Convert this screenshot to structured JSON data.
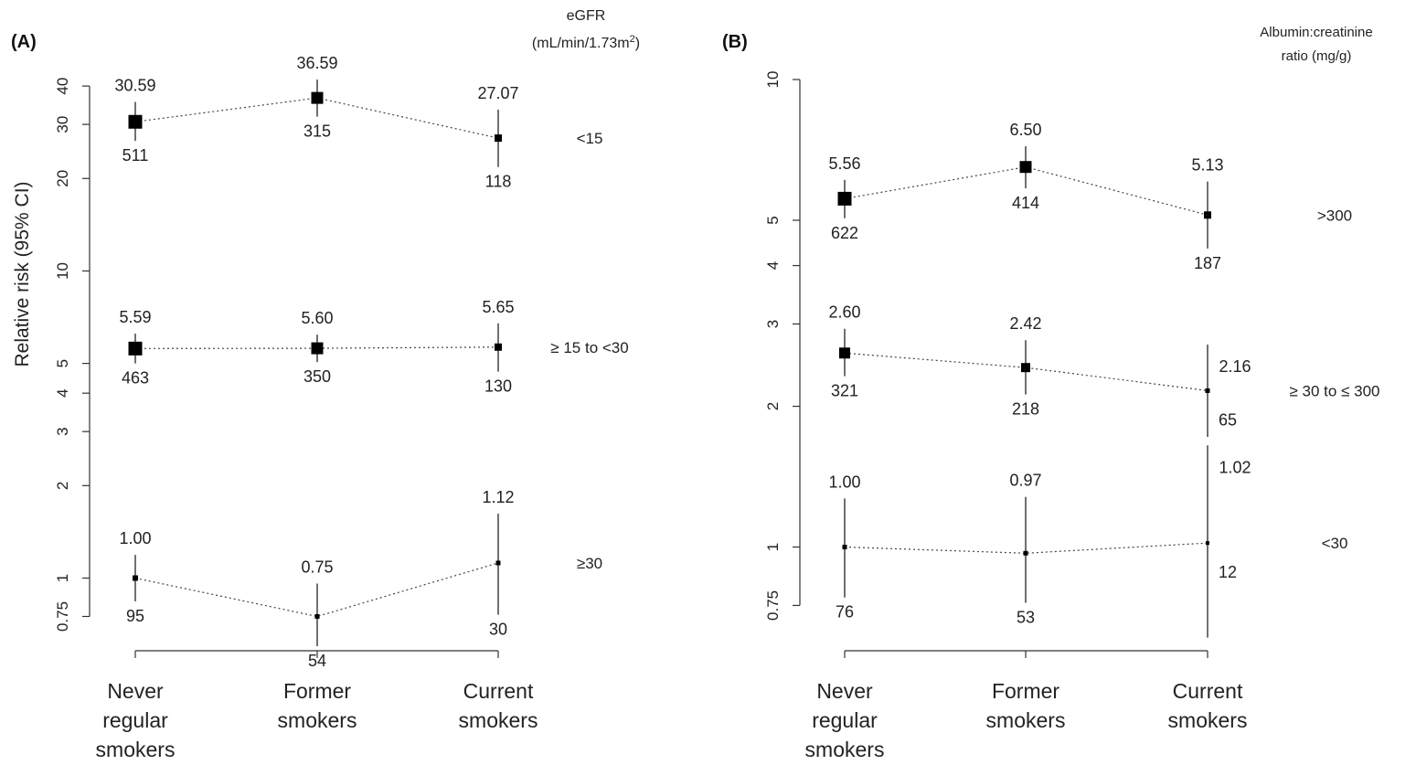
{
  "chart_data": [
    {
      "type": "scatter",
      "panel_label": "(A)",
      "ylabel": "Relative risk (95% CI)",
      "yscale": "log",
      "ylim": [
        0.58,
        42
      ],
      "yticks": [
        0.75,
        1,
        2,
        3,
        4,
        5,
        10,
        20,
        30,
        40
      ],
      "ytick_labels": [
        "0.75",
        "1",
        "2",
        "3",
        "4",
        "5",
        "10",
        "20",
        "30",
        "40"
      ],
      "categories": [
        {
          "lines": [
            "Never",
            "regular",
            "smokers"
          ]
        },
        {
          "lines": [
            "Former",
            "smokers"
          ]
        },
        {
          "lines": [
            "Current",
            "smokers"
          ]
        }
      ],
      "header": {
        "line1": "eGFR",
        "line2": "(mL/min/1.73m",
        "sup": "2",
        "line2_end": ")"
      },
      "series": [
        {
          "group": "<15",
          "points": [
            {
              "value": 30.59,
              "label": "30.59",
              "lo": 26.5,
              "hi": 35.5,
              "n": "511",
              "size": 15
            },
            {
              "value": 36.59,
              "label": "36.59",
              "lo": 31.8,
              "hi": 42.0,
              "n": "315",
              "size": 13
            },
            {
              "value": 27.07,
              "label": "27.07",
              "lo": 21.8,
              "hi": 33.5,
              "n": "118",
              "size": 8
            }
          ]
        },
        {
          "group": "≥ 15 to <30",
          "points": [
            {
              "value": 5.59,
              "label": "5.59",
              "lo": 5.0,
              "hi": 6.25,
              "n": "463",
              "size": 15
            },
            {
              "value": 5.6,
              "label": "5.60",
              "lo": 5.05,
              "hi": 6.2,
              "n": "350",
              "size": 13
            },
            {
              "value": 5.65,
              "label": "5.65",
              "lo": 4.7,
              "hi": 6.75,
              "n": "130",
              "size": 8
            }
          ]
        },
        {
          "group": "≥30",
          "points": [
            {
              "value": 1.0,
              "label": "1.00",
              "lo": 0.84,
              "hi": 1.19,
              "n": "95",
              "size": 6
            },
            {
              "value": 0.75,
              "label": "0.75",
              "lo": 0.6,
              "hi": 0.96,
              "n": "54",
              "size": 5
            },
            {
              "value": 1.12,
              "label": "1.12",
              "lo": 0.76,
              "hi": 1.62,
              "n": "30",
              "size": 5
            }
          ]
        }
      ]
    },
    {
      "type": "scatter",
      "panel_label": "(B)",
      "ylabel": "",
      "yscale": "log",
      "ylim": [
        0.6,
        10
      ],
      "yticks": [
        0.75,
        1,
        2,
        3,
        4,
        5,
        10
      ],
      "ytick_labels": [
        "0.75",
        "1",
        "2",
        "3",
        "4",
        "5",
        "10"
      ],
      "categories": [
        {
          "lines": [
            "Never",
            "regular",
            "smokers"
          ]
        },
        {
          "lines": [
            "Former",
            "smokers"
          ]
        },
        {
          "lines": [
            "Current",
            "smokers"
          ]
        }
      ],
      "header": {
        "line1": "Albumin:creatinine",
        "line2": "ratio (mg/g)"
      },
      "series": [
        {
          "group": ">300",
          "points": [
            {
              "value": 5.56,
              "label": "5.56",
              "lo": 5.05,
              "hi": 6.1,
              "n": "622",
              "size": 15
            },
            {
              "value": 6.5,
              "label": "6.50",
              "lo": 5.85,
              "hi": 7.2,
              "n": "414",
              "size": 13
            },
            {
              "value": 5.13,
              "label": "5.13",
              "lo": 4.35,
              "hi": 6.05,
              "n": "187",
              "size": 8
            }
          ]
        },
        {
          "group": "≥ 30 to ≤ 300",
          "points": [
            {
              "value": 2.6,
              "label": "2.60",
              "lo": 2.32,
              "hi": 2.93,
              "n": "321",
              "size": 12
            },
            {
              "value": 2.42,
              "label": "2.42",
              "lo": 2.12,
              "hi": 2.77,
              "n": "218",
              "size": 10
            },
            {
              "value": 2.16,
              "label": "2.16",
              "lo": 1.72,
              "hi": 2.71,
              "n": "65",
              "size": 5
            }
          ]
        },
        {
          "group": "<30",
          "points": [
            {
              "value": 1.0,
              "label": "1.00",
              "lo": 0.78,
              "hi": 1.27,
              "n": "76",
              "size": 5
            },
            {
              "value": 0.97,
              "label": "0.97",
              "lo": 0.76,
              "hi": 1.28,
              "n": "53",
              "size": 5
            },
            {
              "value": 1.02,
              "label": "1.02",
              "lo": 0.64,
              "hi": 1.65,
              "n": "12",
              "size": 4
            }
          ]
        }
      ]
    }
  ]
}
